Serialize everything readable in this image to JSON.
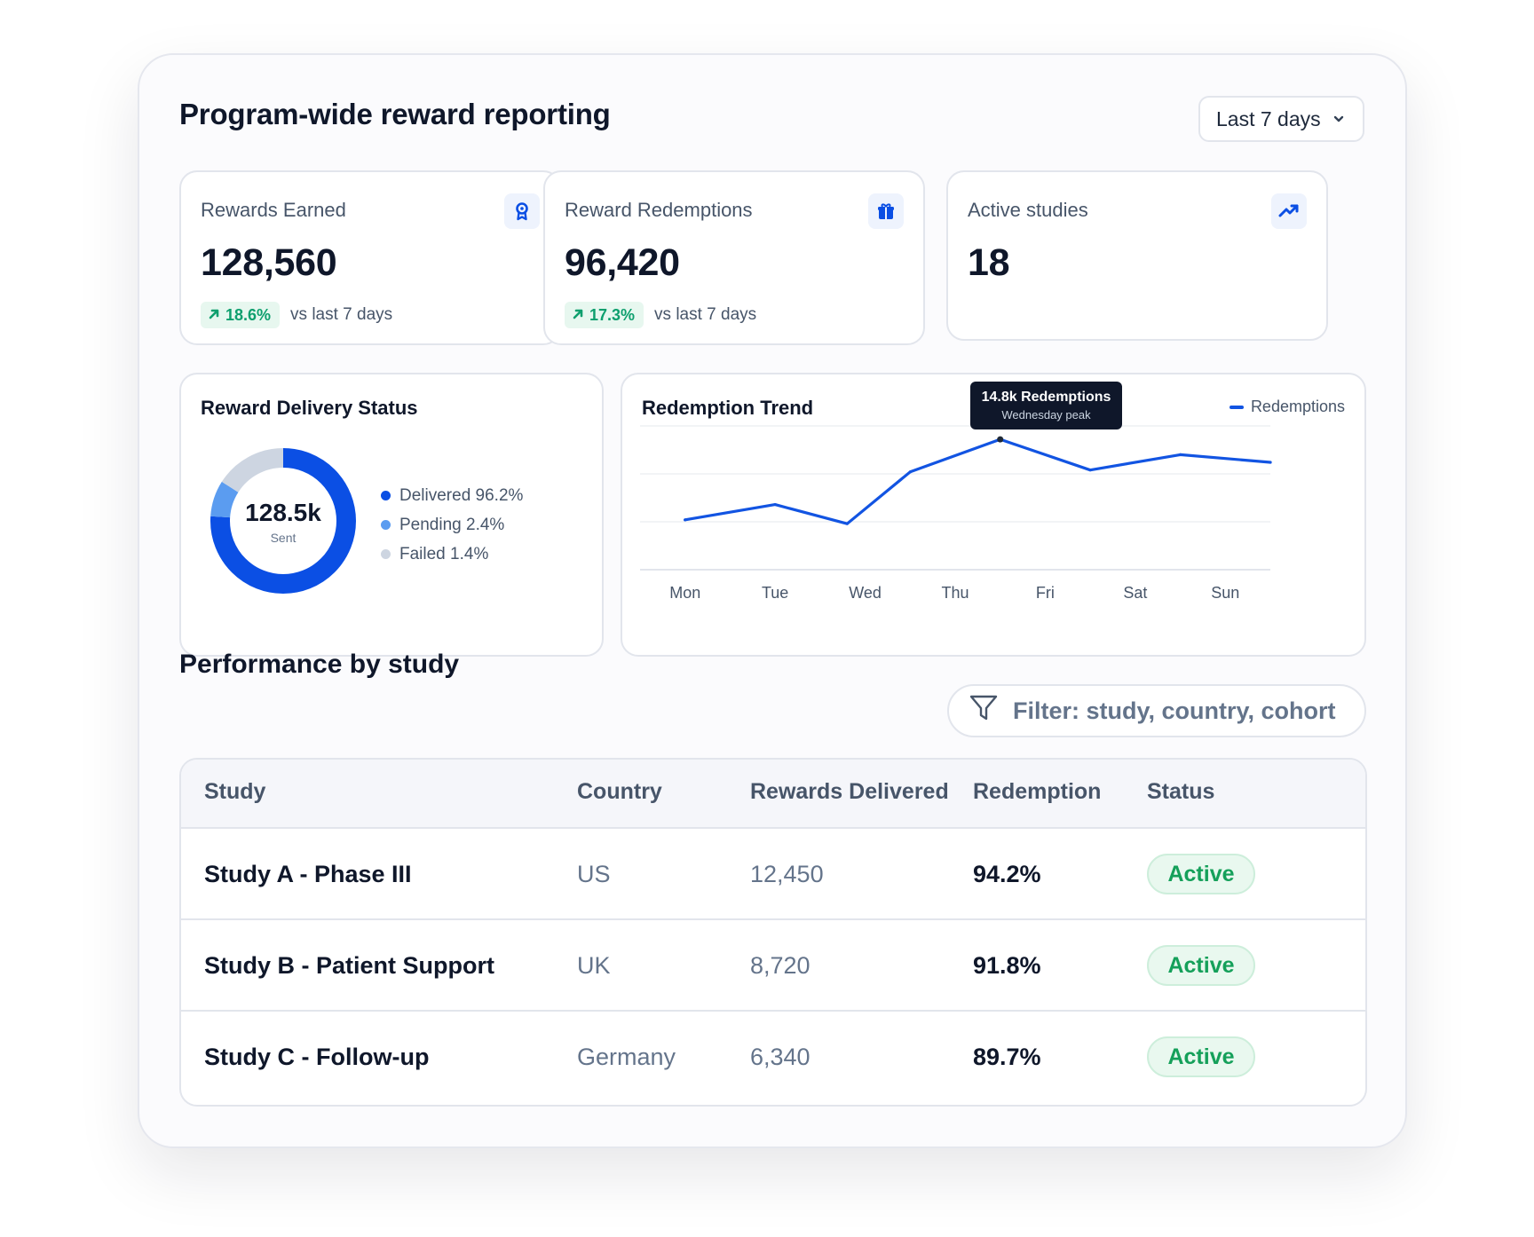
{
  "page": {
    "title": "Program-wide reward reporting",
    "date_range": {
      "selected": "Last 7 days"
    }
  },
  "stats": [
    {
      "label": "Rewards Earned",
      "value": "128,560",
      "delta": "18.6%",
      "note": "vs last 7 days",
      "icon": "ribbon-award-icon"
    },
    {
      "label": "Reward Redemptions",
      "value": "96,420",
      "delta": "17.3%",
      "note": "vs last 7 days",
      "icon": "gift-icon"
    },
    {
      "label": "Active studies",
      "value": "18",
      "icon": "trending-up-icon"
    }
  ],
  "delivery_status": {
    "title": "Reward Delivery Status",
    "center_value": "128.5k",
    "center_label": "Sent",
    "legend": [
      {
        "label": "Delivered 96.2%",
        "color": "#0b4fe4"
      },
      {
        "label": "Pending 2.4%",
        "color": "#5b9cf0"
      },
      {
        "label": "Failed 1.4%",
        "color": "#cdd5e1"
      }
    ]
  },
  "trend": {
    "title": "Redemption Trend",
    "legend": "Redemptions",
    "tooltip": {
      "title": "14.8k Redemptions",
      "subtitle": "Wednesday peak"
    }
  },
  "chart_data": [
    {
      "type": "pie",
      "title": "Reward Delivery Status",
      "categories": [
        "Delivered",
        "Pending",
        "Failed"
      ],
      "values": [
        96.2,
        2.4,
        1.4
      ],
      "colors": [
        "#0b4fe4",
        "#5b9cf0",
        "#cdd5e1"
      ]
    },
    {
      "type": "line",
      "title": "Redemption Trend",
      "categories": [
        "Mon",
        "Tue",
        "Wed",
        "Thu",
        "Fri",
        "Sat",
        "Sun"
      ],
      "x_between": [
        0.5,
        1.5,
        2.3,
        3.0,
        4.0,
        5.0,
        6.0,
        7.0
      ],
      "y": [
        10.6,
        11.4,
        10.4,
        13.1,
        14.8,
        13.2,
        14.0,
        13.6
      ],
      "ylim": [
        8.0,
        15.5
      ],
      "series": [
        {
          "name": "Redemptions"
        }
      ],
      "color": "#1254e2",
      "grid": true,
      "legend_position": "top-right"
    }
  ],
  "performance": {
    "title": "Performance by study",
    "filter_placeholder": "Filter: study, country, cohort",
    "columns": [
      "Study",
      "Country",
      "Rewards Delivered",
      "Redemption",
      "Status"
    ],
    "rows": [
      {
        "study": "Study A - Phase III",
        "country": "US",
        "delivered": "12,450",
        "redemption": "94.2%",
        "status": "Active"
      },
      {
        "study": "Study B - Patient Support",
        "country": "UK",
        "delivered": "8,720",
        "redemption": "91.8%",
        "status": "Active"
      },
      {
        "study": "Study C - Follow-up",
        "country": "Germany",
        "delivered": "6,340",
        "redemption": "89.7%",
        "status": "Active"
      }
    ]
  }
}
